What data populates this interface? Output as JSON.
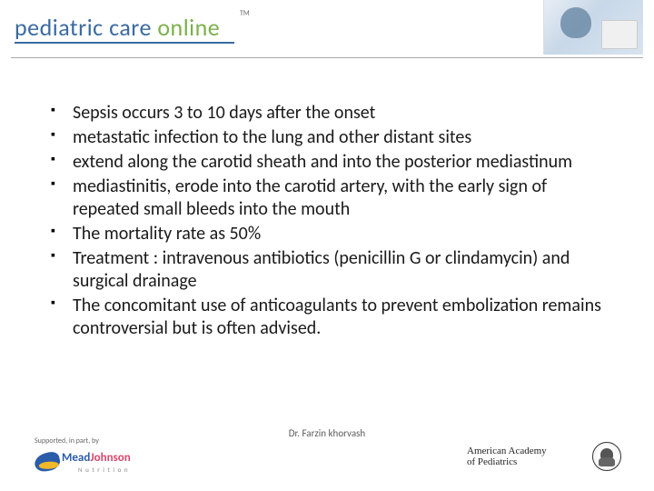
{
  "header": {
    "logo_word1": "pediatric",
    "logo_word2": "care",
    "logo_word3": "online",
    "trademark": "TM"
  },
  "bullets": [
    "Sepsis occurs 3 to 10 days after the onset",
    "metastatic infection to the lung and other distant sites",
    "extend along the carotid sheath and into the posterior mediastinum",
    "mediastinitis, erode into the carotid artery, with the early sign of repeated small bleeds into the mouth",
    " The mortality rate as 50%",
    " Treatment : intravenous antibiotics (penicillin G or clindamycin) and surgical drainage",
    "The concomitant use of anticoagulants to prevent embolization remains controversial but is often advised."
  ],
  "footer": {
    "credit": "Dr. Farzin khorvash",
    "sponsor_label": "Supported, in part, by",
    "sponsor_name_1": "Mead",
    "sponsor_name_2": "Johnson",
    "sponsor_sub": "N u t r i t i o n",
    "aap_line1": "American Academy",
    "aap_line2": "of Pediatrics"
  },
  "colors": {
    "logo_blue": "#3a6aa0",
    "logo_green": "#7bb04a",
    "text": "#1a1a1a",
    "credit": "#5a5a5a",
    "mj_blue": "#2a5caa",
    "mj_pink": "#d9486e",
    "mj_gold": "#f0b828"
  },
  "typography": {
    "bullet_fontsize": 20,
    "logo_fontsize": 26,
    "credit_fontsize": 11
  }
}
